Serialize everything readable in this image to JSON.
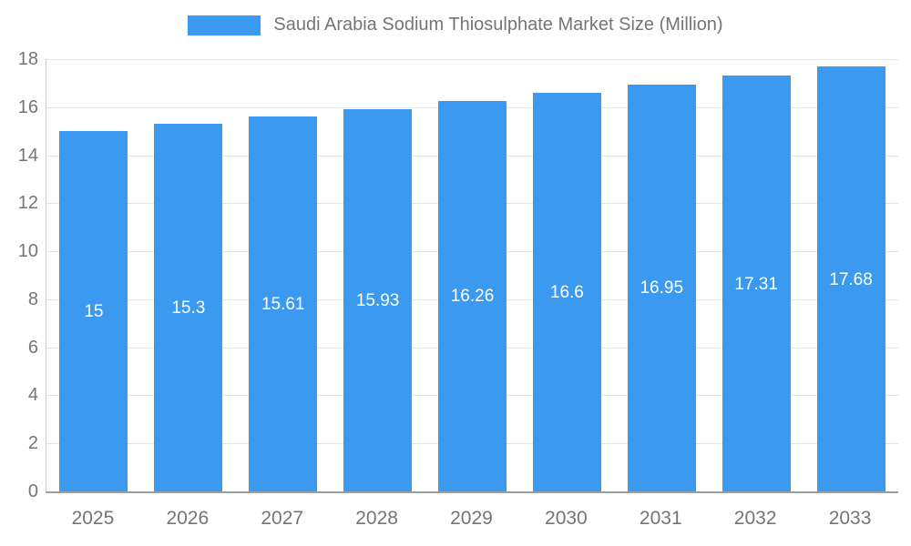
{
  "legend": {
    "title": "Saudi Arabia Sodium Thiosulphate Market Size (Million)"
  },
  "colors": {
    "bar": "#3b99f0",
    "axis_label": "#757575",
    "gridline": "#e3e3e3",
    "axis_line": "#9e9e9e",
    "value_label": "#ffffff"
  },
  "chart_data": {
    "type": "bar",
    "title": "Saudi Arabia Sodium Thiosulphate Market Size (Million)",
    "categories": [
      "2025",
      "2026",
      "2027",
      "2028",
      "2029",
      "2030",
      "2031",
      "2032",
      "2033"
    ],
    "values": [
      15,
      15.3,
      15.61,
      15.93,
      16.26,
      16.6,
      16.95,
      17.31,
      17.68
    ],
    "value_labels": [
      "15",
      "15.3",
      "15.61",
      "15.93",
      "16.26",
      "16.6",
      "16.95",
      "17.31",
      "17.68"
    ],
    "xlabel": "",
    "ylabel": "",
    "ylim": [
      0,
      18
    ],
    "ytick_step": 2,
    "grid": true,
    "legend_position": "top",
    "value_label_placement": "inside-center"
  }
}
